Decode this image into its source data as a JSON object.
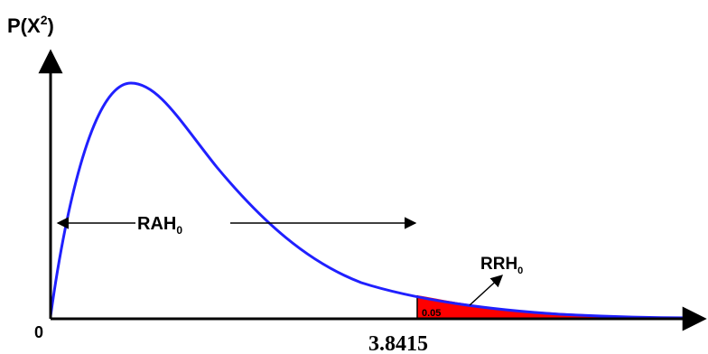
{
  "y_axis_label": {
    "main": "P(X",
    "sup": "2",
    "close": ")"
  },
  "origin_label": "0",
  "critical_value": "3.8415",
  "alpha_label": "0.05",
  "acceptance_region": {
    "main": "RAH",
    "sub": "0"
  },
  "rejection_region": {
    "main": "RRH",
    "sub": "0"
  },
  "colors": {
    "curve": "#2020ff",
    "rejection_fill": "#ff0000",
    "axis": "#000000"
  }
}
